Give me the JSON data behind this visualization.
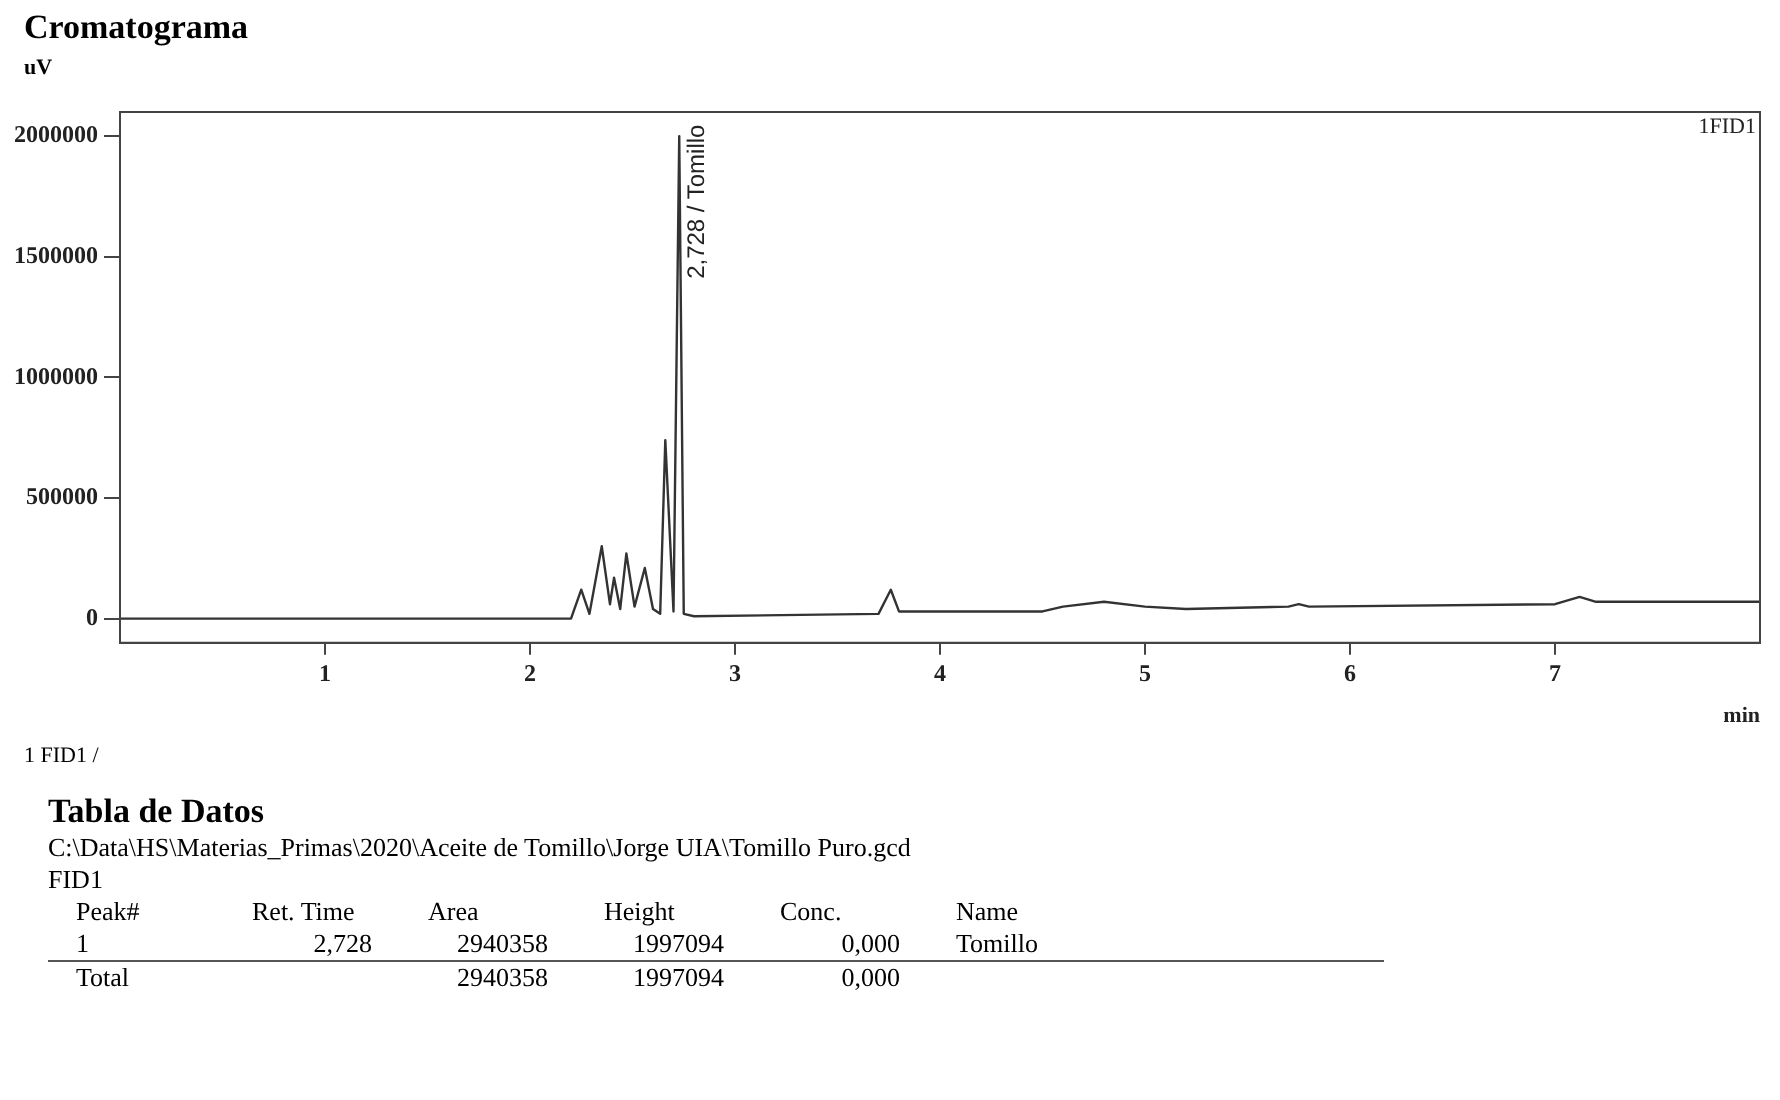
{
  "chart_data": {
    "type": "line",
    "title": "Cromatograma",
    "ylabel": "uV",
    "xlabel": "min",
    "xlim": [
      0,
      8
    ],
    "xticks": [
      1,
      2,
      3,
      4,
      5,
      6,
      7
    ],
    "ylim": [
      -100000,
      2100000
    ],
    "yticks": [
      0,
      500000,
      1000000,
      1500000,
      2000000
    ],
    "grid": false,
    "legend": false,
    "marker": "none",
    "line_style": "solid",
    "series": [
      {
        "color": "#333333",
        "x": [
          0,
          2.2,
          2.25,
          2.29,
          2.35,
          2.39,
          2.41,
          2.44,
          2.47,
          2.51,
          2.56,
          2.6,
          2.635,
          2.66,
          2.7,
          2.728,
          2.75,
          2.8,
          3.7,
          3.76,
          3.8,
          4.5,
          4.6,
          4.8,
          5.0,
          5.2,
          5.7,
          5.75,
          5.8,
          7.0,
          7.12,
          7.2,
          8.0
        ],
        "values": [
          0,
          0,
          120000,
          20000,
          300000,
          60000,
          170000,
          40000,
          270000,
          50000,
          210000,
          40000,
          20000,
          740000,
          30000,
          2000000,
          20000,
          10000,
          20000,
          120000,
          30000,
          30000,
          50000,
          70000,
          50000,
          40000,
          50000,
          60000,
          50000,
          60000,
          90000,
          70000,
          70000
        ]
      }
    ],
    "annotations": [
      {
        "text": "2,728 / Tomillo",
        "x": 2.728,
        "y": 2000000
      },
      "1FID1",
      "1  FID1 /",
      "Tabla de Datos",
      "C:\\Data\\HS\\Materias_Primas\\2020\\Aceite de Tomillo\\Jorge UIA\\Tomillo Puro.gcd",
      "FID1",
      "Peak#\tRet. Time\tArea\tHeight\tConc.\tName",
      "1\t2,728\t2940358\t1997094\t0,000\tTomillo",
      "Total\t\t2940358\t1997094\t0,000\t"
    ]
  }
}
